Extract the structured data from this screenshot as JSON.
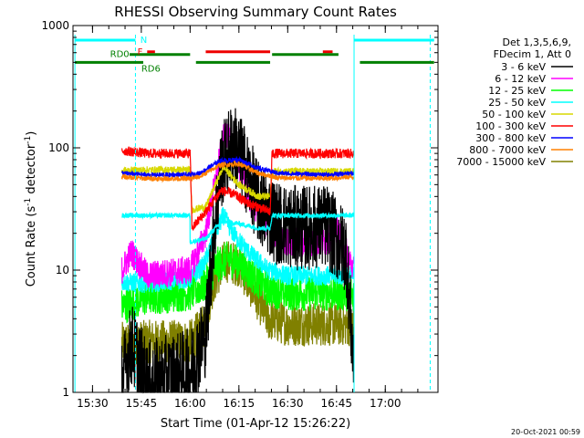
{
  "chart_data": {
    "type": "line",
    "title": "RHESSI Observing Summary Count Rates",
    "xlabel": "Start Time (01-Apr-12 15:26:22)",
    "ylabel_main": "Count Rate (s",
    "ylabel_sup1": "-1",
    "ylabel_mid": " detector",
    "ylabel_sup2": "-1",
    "ylabel_end": ")",
    "x_unit": "minutes",
    "xlim": [
      15.4,
      17.27
    ],
    "ylim": [
      1,
      1000
    ],
    "y_scale": "log",
    "x_ticks": [
      {
        "v": 15.5,
        "label": "15:30"
      },
      {
        "v": 15.75,
        "label": "15:45"
      },
      {
        "v": 16.0,
        "label": "16:00"
      },
      {
        "v": 16.25,
        "label": "16:15"
      },
      {
        "v": 16.5,
        "label": "16:30"
      },
      {
        "v": 16.75,
        "label": "16:45"
      },
      {
        "v": 17.0,
        "label": "17:00"
      }
    ],
    "y_ticks": [
      {
        "v": 1,
        "label": "1"
      },
      {
        "v": 10,
        "label": "10"
      },
      {
        "v": 100,
        "label": "100"
      },
      {
        "v": 1000,
        "label": "1000"
      }
    ],
    "legend": {
      "placement": "right",
      "header": [
        "Det 1,3,5,6,9,",
        "FDecim 1, Att 0"
      ],
      "entries": [
        {
          "label": "3 - 6 keV",
          "color": "#000000"
        },
        {
          "label": "6 - 12 keV",
          "color": "#ff00ff"
        },
        {
          "label": "12 - 25 keV",
          "color": "#00ff00"
        },
        {
          "label": "25 - 50 keV",
          "color": "#00ffff"
        },
        {
          "label": "50 - 100 keV",
          "color": "#d8d800"
        },
        {
          "label": "100 - 300 keV",
          "color": "#ff0000"
        },
        {
          "label": "300 - 800 keV",
          "color": "#0000ff"
        },
        {
          "label": "800 - 7000 keV",
          "color": "#ff8000"
        },
        {
          "label": "7000 - 15000 keV",
          "color": "#808000"
        }
      ]
    },
    "flags": {
      "night": {
        "label": "N",
        "color": "#00ffff",
        "y": 760,
        "segments": [
          [
            15.41,
            15.72
          ],
          [
            16.84,
            17.25
          ]
        ]
      },
      "flare": {
        "label": "F",
        "color": "#ee0000",
        "y": 610,
        "segments": [
          [
            15.78,
            15.82
          ],
          [
            16.08,
            16.41
          ],
          [
            16.68,
            16.73
          ]
        ]
      },
      "rd0": {
        "label": "RD0",
        "color": "#008000",
        "y": 580,
        "segments": [
          [
            15.69,
            16.0
          ],
          [
            16.42,
            16.76
          ]
        ]
      },
      "rd6": {
        "label": "RD6",
        "color": "#008000",
        "y": 500,
        "segments": [
          [
            15.41,
            15.76
          ],
          [
            16.03,
            16.41
          ],
          [
            16.87,
            17.25
          ]
        ]
      }
    },
    "cyan_verticals": [
      {
        "x": 15.72,
        "style": "dashed"
      },
      {
        "x": 16.84,
        "style": "solid"
      },
      {
        "x": 17.23,
        "style": "dashed"
      },
      {
        "x": 15.41,
        "style": "solid"
      }
    ],
    "series": [
      {
        "color": "#808000",
        "noise": 0.18,
        "points": [
          [
            15.65,
            2.5
          ],
          [
            15.78,
            2.6
          ],
          [
            16.0,
            2.6
          ],
          [
            16.07,
            3.5
          ],
          [
            16.12,
            8
          ],
          [
            16.18,
            12
          ],
          [
            16.25,
            11
          ],
          [
            16.32,
            7
          ],
          [
            16.4,
            4
          ],
          [
            16.5,
            3.6
          ],
          [
            16.7,
            3.6
          ],
          [
            16.84,
            3.6
          ]
        ]
      },
      {
        "color": "#00ff00",
        "noise": 0.15,
        "points": [
          [
            15.65,
            5
          ],
          [
            15.78,
            6
          ],
          [
            16.0,
            6.5
          ],
          [
            16.07,
            7.5
          ],
          [
            16.14,
            11
          ],
          [
            16.2,
            12.5
          ],
          [
            16.25,
            11.5
          ],
          [
            16.32,
            9
          ],
          [
            16.4,
            7
          ],
          [
            16.5,
            6.5
          ],
          [
            16.7,
            6.5
          ],
          [
            16.84,
            6.5
          ]
        ]
      },
      {
        "color": "#00ffff",
        "noise": 0.08,
        "points": [
          [
            15.65,
            8
          ],
          [
            15.78,
            7.8
          ],
          [
            16.0,
            8.5
          ],
          [
            16.07,
            11
          ],
          [
            16.13,
            20
          ],
          [
            16.17,
            28
          ],
          [
            16.22,
            20
          ],
          [
            16.3,
            14
          ],
          [
            16.4,
            10
          ],
          [
            16.5,
            9
          ],
          [
            16.7,
            9
          ],
          [
            16.84,
            9
          ]
        ]
      },
      {
        "color": "#ff00ff",
        "noise": 0.12,
        "points": [
          [
            15.65,
            10
          ],
          [
            15.7,
            14
          ],
          [
            15.78,
            9
          ],
          [
            16.0,
            10
          ],
          [
            16.08,
            20
          ],
          [
            16.14,
            65
          ],
          [
            16.18,
            140
          ],
          [
            16.22,
            100
          ],
          [
            16.3,
            40
          ],
          [
            16.4,
            22
          ],
          [
            16.5,
            17
          ],
          [
            16.7,
            17
          ],
          [
            16.75,
            22
          ],
          [
            16.84,
            10
          ]
        ]
      },
      {
        "color": "#000000",
        "noise": 0.35,
        "points": [
          [
            15.65,
            1.2
          ],
          [
            15.7,
            2.5
          ],
          [
            15.78,
            1.2
          ],
          [
            16.0,
            1.5
          ],
          [
            16.08,
            3
          ],
          [
            16.12,
            20
          ],
          [
            16.16,
            70
          ],
          [
            16.22,
            110
          ],
          [
            16.28,
            70
          ],
          [
            16.35,
            35
          ],
          [
            16.45,
            24
          ],
          [
            16.55,
            22
          ],
          [
            16.7,
            23
          ],
          [
            16.8,
            14
          ],
          [
            16.84,
            1.5
          ]
        ]
      },
      {
        "color": "#d8d800",
        "noise": 0.03,
        "points": [
          [
            15.65,
            65
          ],
          [
            15.78,
            66
          ],
          [
            16.0,
            66
          ],
          [
            16.01,
            31
          ],
          [
            16.08,
            33
          ],
          [
            16.17,
            70
          ],
          [
            16.25,
            50
          ],
          [
            16.35,
            40
          ],
          [
            16.41,
            40
          ],
          [
            16.42,
            64
          ],
          [
            16.7,
            64
          ],
          [
            16.84,
            64
          ]
        ]
      },
      {
        "color": "#00ffff",
        "noise": 0.02,
        "points": [
          [
            15.65,
            28
          ],
          [
            16.0,
            28
          ],
          [
            16.0,
            17
          ],
          [
            16.08,
            18
          ],
          [
            16.16,
            25
          ],
          [
            16.25,
            24
          ],
          [
            16.35,
            22
          ],
          [
            16.41,
            22
          ],
          [
            16.42,
            28
          ],
          [
            16.84,
            28
          ]
        ]
      },
      {
        "color": "#ff0000",
        "noise": 0.04,
        "points": [
          [
            15.65,
            95
          ],
          [
            15.78,
            90
          ],
          [
            16.0,
            90
          ],
          [
            16.01,
            22
          ],
          [
            16.08,
            30
          ],
          [
            16.16,
            45
          ],
          [
            16.22,
            42
          ],
          [
            16.3,
            35
          ],
          [
            16.41,
            30
          ],
          [
            16.42,
            90
          ],
          [
            16.84,
            90
          ]
        ]
      },
      {
        "color": "#0000ff",
        "noise": 0.02,
        "points": [
          [
            15.65,
            62
          ],
          [
            15.78,
            60
          ],
          [
            16.0,
            60
          ],
          [
            16.05,
            62
          ],
          [
            16.15,
            78
          ],
          [
            16.25,
            80
          ],
          [
            16.35,
            68
          ],
          [
            16.45,
            62
          ],
          [
            16.7,
            60
          ],
          [
            16.84,
            62
          ]
        ]
      },
      {
        "color": "#ff8000",
        "noise": 0.02,
        "points": [
          [
            15.65,
            58
          ],
          [
            15.78,
            56
          ],
          [
            16.0,
            56
          ],
          [
            16.05,
            58
          ],
          [
            16.15,
            72
          ],
          [
            16.25,
            74
          ],
          [
            16.35,
            62
          ],
          [
            16.45,
            57
          ],
          [
            16.7,
            56
          ],
          [
            16.84,
            58
          ]
        ]
      }
    ],
    "footer_timestamp": "20-Oct-2021 00:59"
  }
}
